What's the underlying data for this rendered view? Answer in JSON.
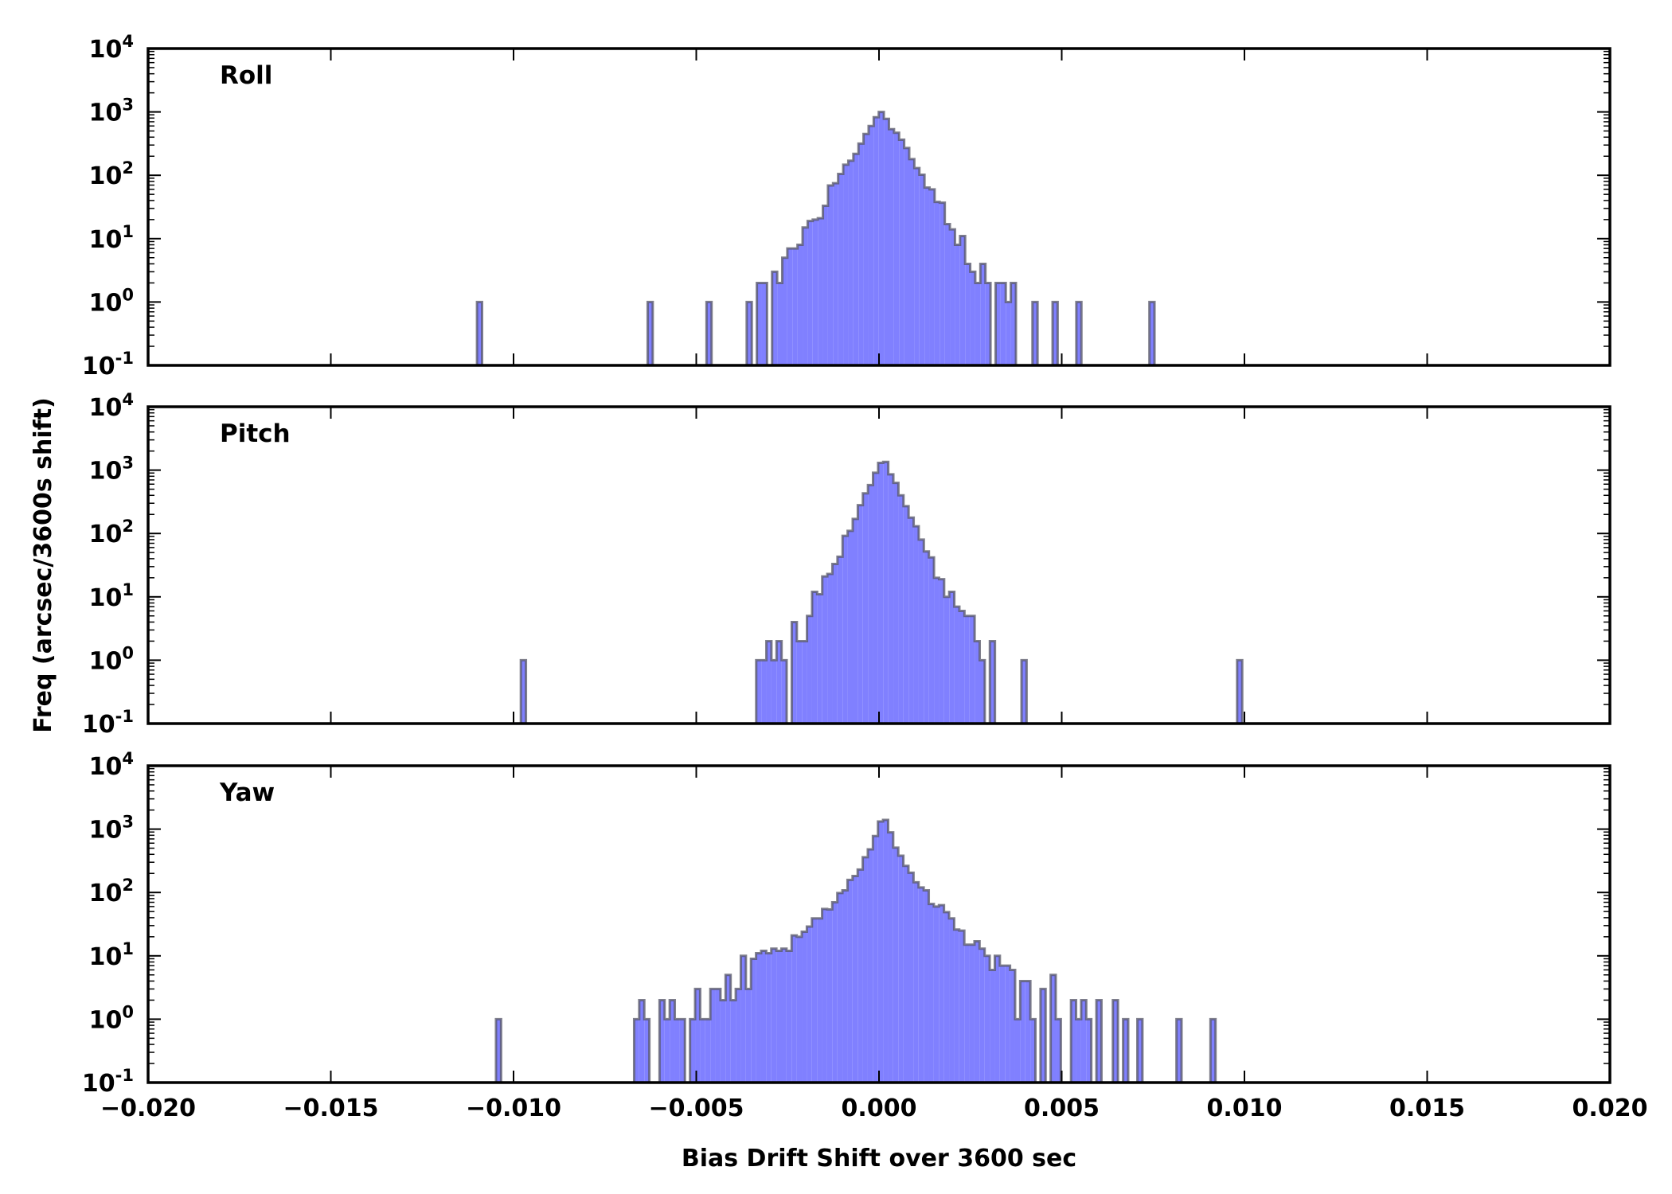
{
  "chart_data": {
    "type": "histogram",
    "y_scale": "log",
    "xlabel": "Bias Drift Shift over 3600 sec",
    "ylabel": "Freq (arcsec/3600s shift)",
    "xlim": [
      -0.02,
      0.02
    ],
    "ylim": [
      0.1,
      10000
    ],
    "x_ticks": [
      "−0.020",
      "−0.015",
      "−0.010",
      "−0.005",
      "0.000",
      "0.005",
      "0.010",
      "0.015",
      "0.020"
    ],
    "x_tick_values": [
      -0.02,
      -0.015,
      -0.01,
      -0.005,
      0,
      0.005,
      0.01,
      0.015,
      0.02
    ],
    "y_ticks": [
      {
        "base": "10",
        "exp": "4"
      },
      {
        "base": "10",
        "exp": "3"
      },
      {
        "base": "10",
        "exp": "2"
      },
      {
        "base": "10",
        "exp": "1"
      },
      {
        "base": "10",
        "exp": "0"
      },
      {
        "base": "10",
        "exp": "-1"
      }
    ],
    "bin_width": 0.000139,
    "fill_color": "#8080ff",
    "edge_color": "#555566",
    "panels": [
      {
        "name": "Roll",
        "start": -0.00362,
        "counts": [
          1,
          0,
          2,
          2,
          0,
          3,
          2,
          5,
          7,
          7,
          8,
          15,
          19,
          20,
          21,
          33,
          69,
          75,
          105,
          147,
          170,
          218,
          316,
          450,
          600,
          825,
          1000,
          780,
          535,
          470,
          365,
          270,
          180,
          130,
          102,
          64,
          60,
          38,
          37,
          17,
          14,
          8,
          11,
          4,
          3,
          2,
          4,
          2,
          0,
          2,
          2,
          1,
          2
        ],
        "outliers": [
          [
            -0.011,
            1
          ],
          [
            -0.00633,
            1
          ],
          [
            -0.00472,
            1
          ],
          [
            0.0042,
            1
          ],
          [
            0.00475,
            1
          ],
          [
            0.0054,
            1
          ],
          [
            0.0074,
            1
          ]
        ]
      },
      {
        "name": "Pitch",
        "start": -0.00336,
        "counts": [
          1,
          1,
          2,
          1,
          2,
          1,
          0,
          4,
          2,
          2,
          5,
          12,
          11,
          21,
          23,
          33,
          43,
          92,
          110,
          170,
          280,
          430,
          580,
          910,
          1300,
          1350,
          860,
          630,
          400,
          270,
          178,
          130,
          80,
          52,
          42,
          20,
          19,
          10,
          12,
          7,
          6,
          5,
          5,
          2,
          1,
          0,
          2
        ],
        "outliers": [
          [
            -0.0098,
            1
          ],
          [
            0.0039,
            1
          ],
          [
            0.0098,
            1
          ]
        ]
      },
      {
        "name": "Yaw",
        "start": -0.0067,
        "counts": [
          1,
          2,
          1,
          0,
          0,
          2,
          1,
          2,
          1,
          1,
          0,
          1,
          3,
          1,
          1,
          3,
          3,
          2,
          5,
          2,
          3,
          10,
          3,
          9,
          11,
          12,
          11,
          13,
          12,
          13,
          12,
          21,
          20,
          24,
          29,
          39,
          39,
          55,
          54,
          70,
          98,
          108,
          158,
          182,
          230,
          360,
          480,
          780,
          1320,
          1400,
          890,
          510,
          380,
          263,
          205,
          145,
          120,
          108,
          66,
          60,
          63,
          49,
          39,
          26,
          25,
          15,
          15,
          17,
          13,
          10,
          6,
          10,
          7,
          7,
          6,
          1,
          4,
          4,
          1,
          0,
          3,
          0,
          5,
          1,
          0,
          0,
          2,
          1,
          2,
          1,
          0,
          2
        ],
        "outliers": [
          [
            -0.01048,
            1
          ],
          [
            0.0064,
            2
          ],
          [
            0.00668,
            1
          ],
          [
            0.00707,
            1
          ],
          [
            0.00814,
            1
          ],
          [
            0.00907,
            1
          ]
        ]
      }
    ]
  }
}
